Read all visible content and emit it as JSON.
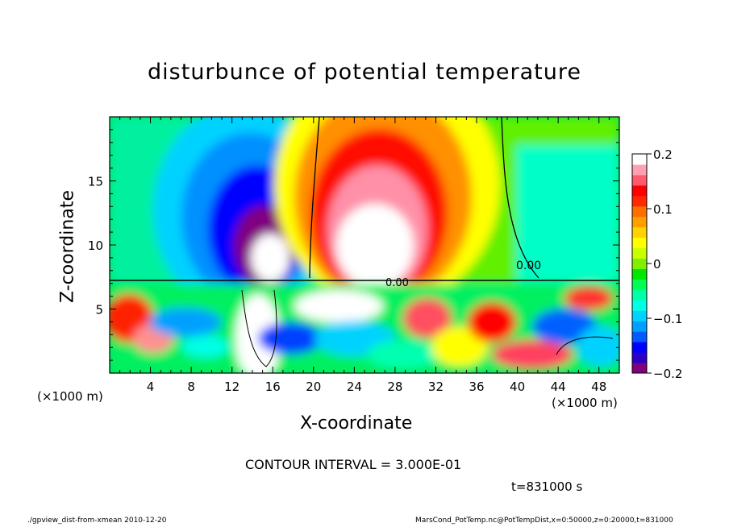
{
  "title": "disturbunce of potential temperature",
  "xlabel": "X-coordinate",
  "ylabel": "Z-coordinate",
  "xunit": "(×1000 m)",
  "contour_interval": "CONTOUR INTERVAL = 3.000E-01",
  "time_label": "t=831000 s",
  "footer_left": "./gpview_dist-from-xmean  2010-12-20",
  "footer_right": "MarsCond_PotTemp.nc@PotTempDist,x=0:50000,z=0:20000,t=831000",
  "chart_data": {
    "type": "heatmap",
    "title": "disturbunce of potential temperature",
    "xlabel": "X-coordinate",
    "ylabel": "Z-coordinate",
    "x_ticks": [
      4,
      8,
      12,
      16,
      20,
      24,
      28,
      32,
      36,
      40,
      44,
      48
    ],
    "y_ticks": [
      5,
      10,
      15
    ],
    "xlim": [
      0,
      50
    ],
    "ylim": [
      0,
      20
    ],
    "colorbar": {
      "ticks": [
        {
          "value": 0.2,
          "label": "0.2"
        },
        {
          "value": 0.1,
          "label": "0.1"
        },
        {
          "value": 0,
          "label": "0"
        },
        {
          "value": -0.1,
          "label": "−0.1"
        },
        {
          "value": -0.2,
          "label": "−0.2"
        }
      ],
      "range": [
        -0.2,
        0.2
      ],
      "colors": [
        "#800080",
        "#2a00c8",
        "#0000ff",
        "#005aff",
        "#00a0ff",
        "#00d2ff",
        "#00ffe6",
        "#00ffaa",
        "#00ff50",
        "#00e600",
        "#7ff000",
        "#c8ff00",
        "#ffff00",
        "#ffd200",
        "#ffa000",
        "#ff6e00",
        "#ff2800",
        "#ff0000",
        "#ff5a6e",
        "#ffa0b4",
        "#ffffff"
      ]
    },
    "contour_labels": [
      "0.00"
    ],
    "features": [
      {
        "name": "cold anomaly",
        "x_center": 15,
        "z_range": [
          7,
          18
        ],
        "sign": "negative"
      },
      {
        "name": "warm anomaly",
        "x_center": 28,
        "z_range": [
          7,
          20
        ],
        "sign": "positive"
      }
    ]
  }
}
